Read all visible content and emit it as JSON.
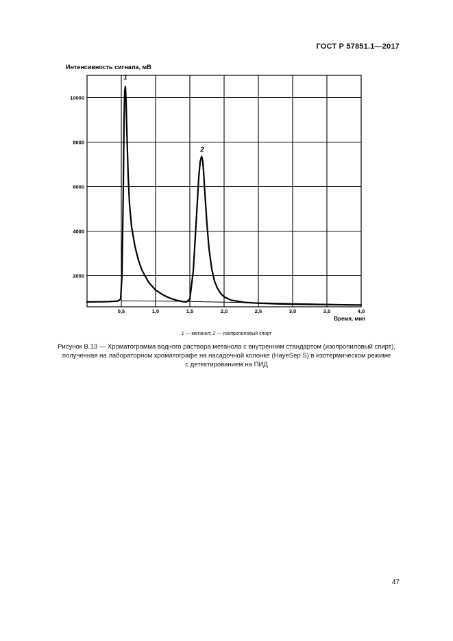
{
  "header": {
    "standard": "ГОСТ Р 57851.1—2017"
  },
  "chart_data": {
    "type": "line",
    "ylabel": "Интенсивность сигнала, мВ",
    "xlabel": "Время, мин",
    "xlim": [
      0,
      4.0
    ],
    "ylim": [
      600,
      11000
    ],
    "x_ticks": [
      0.5,
      1.0,
      1.5,
      2.0,
      2.5,
      3.0,
      3.5,
      4.0
    ],
    "x_tick_labels": [
      "0,5",
      "1,0",
      "1,5",
      "2,0",
      "2,5",
      "3,0",
      "3,5",
      "4,0"
    ],
    "y_ticks": [
      2000,
      4000,
      6000,
      8000,
      10000
    ],
    "y_tick_labels": [
      "2000",
      "4000",
      "6000",
      "8000",
      "10000"
    ],
    "grid": true,
    "peak_labels": [
      {
        "label": "1",
        "x": 0.56,
        "y": 10700
      },
      {
        "label": "2",
        "x": 1.68,
        "y": 7450
      }
    ],
    "series": [
      {
        "x": [
          0.0,
          0.3,
          0.45,
          0.49,
          0.51,
          0.53,
          0.54,
          0.55,
          0.56,
          0.57,
          0.58,
          0.6,
          0.62,
          0.65,
          0.7,
          0.75,
          0.8,
          0.9,
          1.0,
          1.1,
          1.2,
          1.3,
          1.4,
          1.45,
          1.5,
          1.55,
          1.6,
          1.63,
          1.65,
          1.67,
          1.68,
          1.69,
          1.7,
          1.72,
          1.75,
          1.78,
          1.82,
          1.86,
          1.9,
          1.95,
          2.0,
          2.1,
          2.3,
          2.5,
          2.8,
          3.0,
          3.5,
          4.0
        ],
        "y": [
          820,
          830,
          860,
          950,
          2000,
          6000,
          9000,
          10300,
          10500,
          9800,
          8600,
          6500,
          5200,
          4200,
          3300,
          2700,
          2250,
          1700,
          1350,
          1150,
          1000,
          900,
          830,
          820,
          950,
          2200,
          4800,
          6400,
          7100,
          7350,
          7300,
          7100,
          6700,
          5700,
          4300,
          3200,
          2300,
          1750,
          1450,
          1200,
          1050,
          900,
          800,
          760,
          730,
          720,
          700,
          680
        ]
      },
      {
        "x": [
          0.5,
          1.0,
          1.5,
          2.0,
          2.5,
          3.0,
          3.5,
          4.0
        ],
        "y": [
          870,
          860,
          840,
          810,
          780,
          750,
          720,
          690
        ]
      }
    ]
  },
  "figure": {
    "legend_1_num": "1",
    "legend_1_text": " — метанол; ",
    "legend_2_num": "2",
    "legend_2_text": " — изопропиловый спирт",
    "caption_line1": "Рисунок В.13 — Хроматограмма водного раствора метанола с внутренним стандартом (изопропиловый спирт),",
    "caption_line2": "полученная на лабораторном хроматографе на насадочной колонке (HayeSep S) в изотермическом режиме",
    "caption_line3": "с детектированием на ПИД"
  },
  "page_number": "47"
}
